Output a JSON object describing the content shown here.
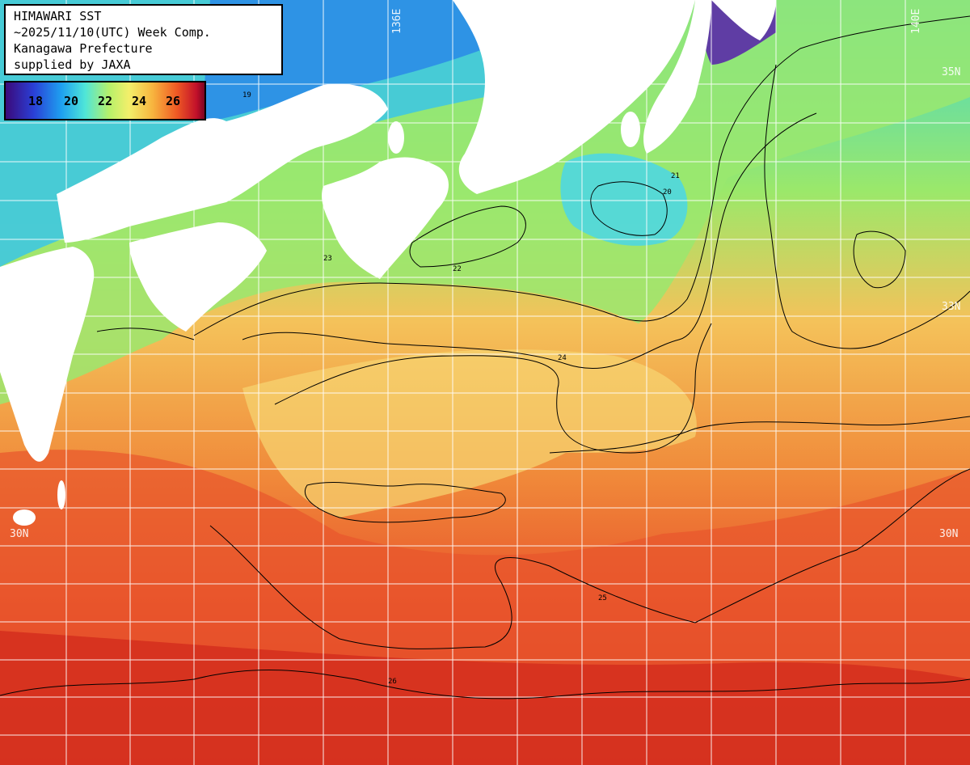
{
  "header": {
    "line1": "HIMAWARI SST",
    "line2": "~2025/11/10(UTC) Week Comp.",
    "line3": "Kanagawa Prefecture",
    "line4": "supplied by JAXA"
  },
  "legend": {
    "ticks": [
      "18",
      "20",
      "22",
      "24",
      "26"
    ]
  },
  "grid_labels": {
    "lon_136": "136E",
    "lon_140": "140E",
    "lat_35": "35N",
    "lat_33": "33N",
    "lat_30_left": "30N",
    "lat_30_right": "30N"
  },
  "isotherm_labels": [
    "19",
    "20",
    "21",
    "22",
    "23",
    "24",
    "25",
    "26"
  ],
  "colors": {
    "land": "#ffffff",
    "cold": "#2a3fd6",
    "cool": "#1ea0f0",
    "mild": "#7fe87a",
    "warm": "#f3d46a",
    "hot": "#e0402a",
    "grid": "#ffffff",
    "contour": "#000000"
  }
}
